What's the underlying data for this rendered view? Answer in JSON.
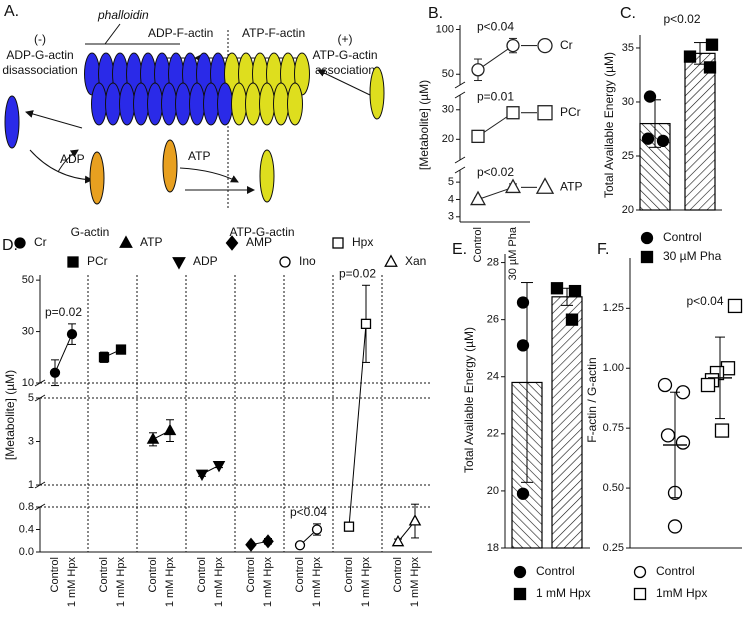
{
  "diagram": {
    "label": "A.",
    "phalloidin": "phalloidin",
    "adp_f_actin": "ADP-F-actin",
    "atp_f_actin": "ATP-F-actin",
    "minus": "(-)",
    "plus": "(+)",
    "disassociation": [
      "ADP-G-actin",
      "disassociation"
    ],
    "association": [
      "ATP-G-actin",
      "association"
    ],
    "adp": "ADP",
    "atp": "ATP",
    "g_actin": "G-actin",
    "atp_g_actin": "ATP-G-actin"
  },
  "chart_data": [
    {
      "type": "broken_line",
      "label": "B.",
      "y_label": "[Metabolite] (µM)",
      "categories": [
        "Control",
        "30 µM Pha"
      ],
      "y_segments": [
        {
          "ylim": [
            2.7,
            5.7
          ],
          "yticks": [
            3,
            4,
            5
          ]
        },
        {
          "ylim": [
            13,
            35
          ],
          "yticks": [
            20,
            30
          ]
        },
        {
          "ylim": [
            38,
            105
          ],
          "yticks": [
            50,
            100
          ]
        }
      ],
      "series": [
        {
          "name": "Cr",
          "marker": "circle",
          "filled": false,
          "color": "#222222",
          "values": [
            55,
            82
          ],
          "errors": [
            12,
            8
          ],
          "p": "p<0.04"
        },
        {
          "name": "PCr",
          "marker": "square",
          "filled": false,
          "color": "#222222",
          "values": [
            21,
            29
          ],
          "errors": [
            2,
            1.5
          ],
          "p": "p=0.01"
        },
        {
          "name": "ATP",
          "marker": "triangle",
          "filled": false,
          "color": "#222222",
          "values": [
            4,
            4.7
          ],
          "errors": [
            0.1,
            0.2
          ],
          "p": "p<0.02"
        }
      ]
    },
    {
      "type": "bar_points",
      "label": "C.",
      "y_label": "Total Available Energy (µM)",
      "p": "p<0.02",
      "categories": [
        "Control",
        "30 µM Pha"
      ],
      "values": [
        28,
        34.5
      ],
      "errors": [
        2.2,
        1
      ],
      "points": [
        [
          30.5,
          26.6,
          26.4
        ],
        [
          35.3,
          34.2,
          33.2
        ]
      ],
      "markers": [
        "circle",
        "square"
      ],
      "color": "#000000",
      "ylim": [
        20,
        36.2
      ],
      "yticks": [
        20,
        25,
        30,
        35
      ]
    },
    {
      "type": "broken_line",
      "label": "D.",
      "y_label": "[Metabolite] (µM)",
      "categories": [
        "Control",
        "1 mM Hpx"
      ],
      "y_segments": [
        {
          "ylim": [
            0,
            0.8
          ],
          "yticks": [
            {
              "value": 0,
              "label": "0.0"
            },
            0.4,
            0.8
          ]
        },
        {
          "ylim": [
            1,
            5
          ],
          "yticks": [
            1,
            3,
            5
          ]
        },
        {
          "ylim": [
            10,
            52
          ],
          "yticks": [
            10,
            30,
            50
          ]
        }
      ],
      "series": [
        {
          "name": "Cr",
          "marker": "circle",
          "filled": true,
          "color": "#000000",
          "values": [
            14,
            29
          ],
          "errors": [
            5,
            4
          ],
          "p": "p=0.02"
        },
        {
          "name": "PCr",
          "marker": "square",
          "filled": true,
          "color": "#000000",
          "values": [
            20,
            23
          ],
          "errors": [
            2,
            1
          ]
        },
        {
          "name": "ATP",
          "marker": "triangle",
          "filled": true,
          "color": "#000000",
          "values": [
            3.1,
            3.5
          ],
          "errors": [
            0.3,
            0.5
          ]
        },
        {
          "name": "ADP",
          "marker": "triangle_down",
          "filled": true,
          "color": "#000000",
          "values": [
            1.5,
            1.9
          ],
          "errors": [
            0.1,
            0.1
          ]
        },
        {
          "name": "AMP",
          "marker": "diamond",
          "filled": true,
          "color": "#000000",
          "values": [
            0.13,
            0.19
          ],
          "errors": [
            0.02,
            0.05
          ]
        },
        {
          "name": "Ino",
          "marker": "circle",
          "filled": false,
          "color": "#000000",
          "values": [
            0.12,
            0.4
          ],
          "errors": [
            0.03,
            0.1
          ],
          "p": "p<0.04"
        },
        {
          "name": "Hpx",
          "marker": "square",
          "filled": false,
          "color": "#000000",
          "values": [
            0.45,
            33
          ],
          "errors": [
            0.05,
            15
          ],
          "p": "p=0.02"
        },
        {
          "name": "Xan",
          "marker": "triangle",
          "filled": false,
          "color": "#000000",
          "values": [
            0.18,
            0.55
          ],
          "errors": [
            0.05,
            0.3
          ]
        }
      ]
    },
    {
      "type": "bar_points",
      "label": "E.",
      "y_label": "Total Available Energy (µM)",
      "categories": [
        "Control",
        "1 mM Hpx"
      ],
      "values": [
        23.8,
        26.8
      ],
      "errors": [
        3.5,
        0.3
      ],
      "points": [
        [
          26.6,
          25.1,
          19.9
        ],
        [
          27.1,
          27.0,
          26.0
        ]
      ],
      "markers": [
        "circle",
        "square"
      ],
      "color": "#000000",
      "ylim": [
        18,
        28.3
      ],
      "yticks": [
        18,
        20,
        22,
        24,
        26,
        28
      ]
    },
    {
      "type": "scatter_mean",
      "label": "F.",
      "y_label": "F-actin / G-actin",
      "p": "p<0.04",
      "categories": [
        "Control",
        "1mM Hpx"
      ],
      "values": [
        0.68,
        0.96
      ],
      "errors": [
        0.22,
        0.17
      ],
      "points": [
        [
          0.93,
          0.9,
          0.72,
          0.69,
          0.48,
          0.34
        ],
        [
          1.26,
          1.0,
          0.98,
          0.95,
          0.93,
          0.74
        ]
      ],
      "markers": [
        "circle",
        "square"
      ],
      "color": "#000000",
      "ylim": [
        0.25,
        1.46
      ],
      "yticks": [
        0.25,
        {
          "value": 0.5,
          "label": "0.50"
        },
        0.75,
        {
          "value": 1,
          "label": "1.00"
        },
        1.25
      ]
    }
  ]
}
